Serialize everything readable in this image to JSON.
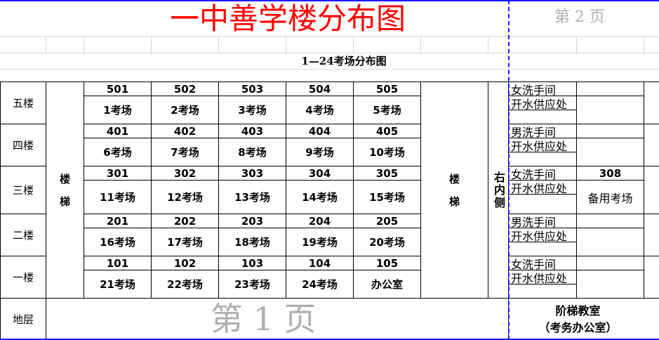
{
  "title": "一中善学楼分布图",
  "caption": "1—24考场分布图",
  "stair_label": "楼\n\n梯",
  "right_inner_label": "右内侧",
  "floors": [
    {
      "label": "五楼",
      "rooms": [
        {
          "num": "501",
          "name": "1考场"
        },
        {
          "num": "502",
          "name": "2考场"
        },
        {
          "num": "503",
          "name": "3考场"
        },
        {
          "num": "504",
          "name": "4考场"
        },
        {
          "num": "505",
          "name": "5考场"
        }
      ],
      "washroom": "女洗手间",
      "water": "开水供应处"
    },
    {
      "label": "四楼",
      "rooms": [
        {
          "num": "401",
          "name": "6考场"
        },
        {
          "num": "402",
          "name": "7考场"
        },
        {
          "num": "403",
          "name": "8考场"
        },
        {
          "num": "404",
          "name": "9考场"
        },
        {
          "num": "405",
          "name": "10考场"
        }
      ],
      "washroom": "男洗手间",
      "water": "开水供应处"
    },
    {
      "label": "三楼",
      "rooms": [
        {
          "num": "301",
          "name": "11考场"
        },
        {
          "num": "302",
          "name": "12考场"
        },
        {
          "num": "303",
          "name": "13考场"
        },
        {
          "num": "304",
          "name": "14考场"
        },
        {
          "num": "305",
          "name": "15考场"
        }
      ],
      "washroom": "女洗手间",
      "water": "开水供应处",
      "extra": {
        "num": "308",
        "name": "备用考场"
      }
    },
    {
      "label": "二楼",
      "rooms": [
        {
          "num": "201",
          "name": "16考场"
        },
        {
          "num": "202",
          "name": "17考场"
        },
        {
          "num": "203",
          "name": "18考场"
        },
        {
          "num": "204",
          "name": "19考场"
        },
        {
          "num": "205",
          "name": "20考场"
        }
      ],
      "washroom": "男洗手间",
      "water": "开水供应处"
    },
    {
      "label": "一楼",
      "rooms": [
        {
          "num": "101",
          "name": "21考场"
        },
        {
          "num": "102",
          "name": "22考场"
        },
        {
          "num": "103",
          "name": "23考场"
        },
        {
          "num": "104",
          "name": "24考场"
        },
        {
          "num": "105",
          "name": "办公室"
        }
      ],
      "washroom": "女洗手间",
      "water": "开水供应处"
    }
  ],
  "basement": {
    "label": "地层",
    "room": "阶梯教室",
    "room_note": "（考务办公室）"
  },
  "watermarks": {
    "page1": "第 1 页",
    "page2": "第 2 页"
  },
  "colors": {
    "title": "#ff0000",
    "page_break": "#1a1aff"
  }
}
